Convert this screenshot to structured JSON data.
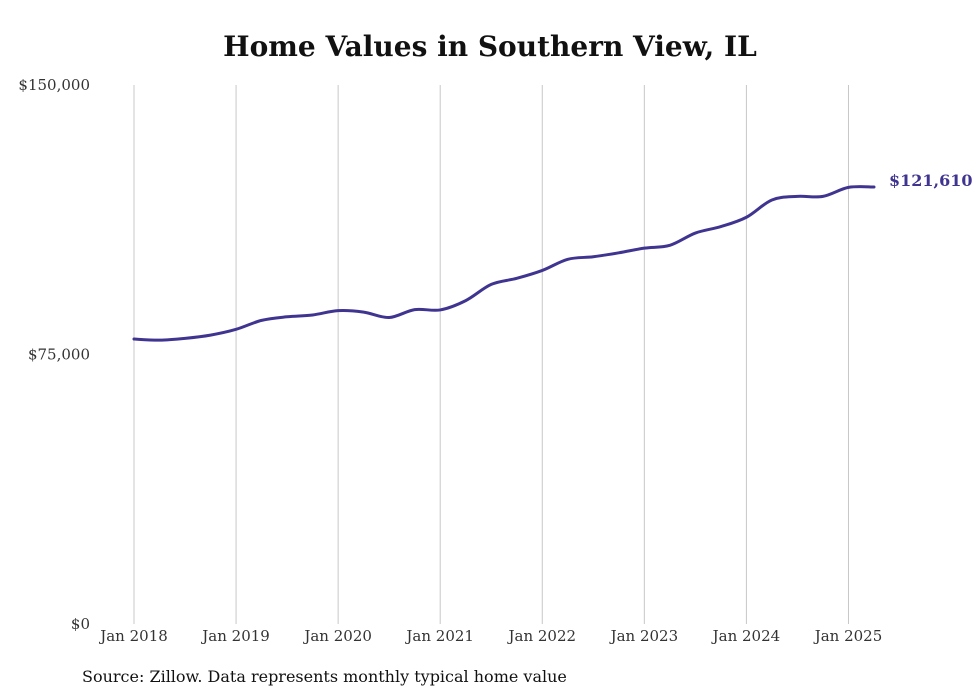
{
  "chart_data": {
    "type": "line",
    "title": "Home Values in Southern View, IL",
    "source": "Source: Zillow. Data represents monthly typical home value",
    "xlabel": "",
    "ylabel": "",
    "ylim": [
      0,
      150000
    ],
    "xlim": [
      "2018-01",
      "2025-04"
    ],
    "grid": "vertical",
    "yticks": [
      {
        "value": 0,
        "label": "$0"
      },
      {
        "value": 75000,
        "label": "$75,000"
      },
      {
        "value": 150000,
        "label": "$150,000"
      }
    ],
    "xticks": [
      {
        "value": "2018-01",
        "label": "Jan 2018"
      },
      {
        "value": "2019-01",
        "label": "Jan 2019"
      },
      {
        "value": "2020-01",
        "label": "Jan 2020"
      },
      {
        "value": "2021-01",
        "label": "Jan 2021"
      },
      {
        "value": "2022-01",
        "label": "Jan 2022"
      },
      {
        "value": "2023-01",
        "label": "Jan 2023"
      },
      {
        "value": "2024-01",
        "label": "Jan 2024"
      },
      {
        "value": "2025-01",
        "label": "Jan 2025"
      }
    ],
    "series": [
      {
        "color": "#3f3590",
        "end_label": "$121,610",
        "points": [
          [
            "2018-01",
            79300
          ],
          [
            "2018-04",
            79000
          ],
          [
            "2018-07",
            79500
          ],
          [
            "2018-10",
            80400
          ],
          [
            "2019-01",
            82000
          ],
          [
            "2019-04",
            84500
          ],
          [
            "2019-07",
            85500
          ],
          [
            "2019-10",
            86000
          ],
          [
            "2020-01",
            87200
          ],
          [
            "2020-04",
            86800
          ],
          [
            "2020-07",
            85300
          ],
          [
            "2020-10",
            87500
          ],
          [
            "2021-01",
            87400
          ],
          [
            "2021-04",
            90000
          ],
          [
            "2021-07",
            94500
          ],
          [
            "2021-10",
            96200
          ],
          [
            "2022-01",
            98400
          ],
          [
            "2022-04",
            101500
          ],
          [
            "2022-07",
            102200
          ],
          [
            "2022-10",
            103300
          ],
          [
            "2023-01",
            104600
          ],
          [
            "2023-04",
            105400
          ],
          [
            "2023-07",
            108800
          ],
          [
            "2023-10",
            110600
          ],
          [
            "2024-01",
            113200
          ],
          [
            "2024-04",
            118000
          ],
          [
            "2024-07",
            119000
          ],
          [
            "2024-10",
            119000
          ],
          [
            "2025-01",
            121500
          ],
          [
            "2025-04",
            121610
          ]
        ]
      }
    ]
  }
}
